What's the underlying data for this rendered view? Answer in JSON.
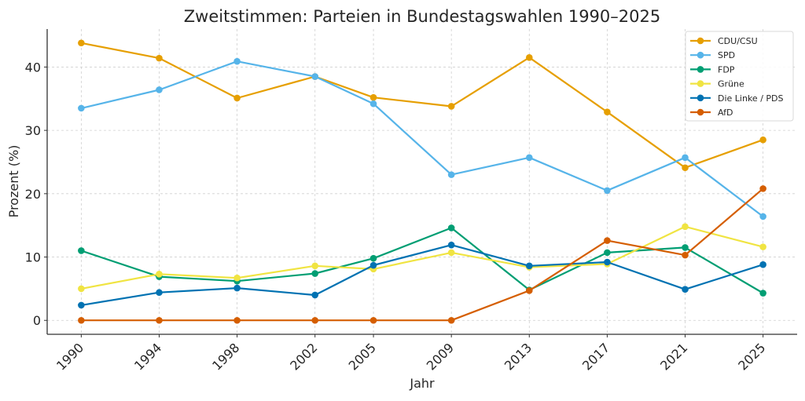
{
  "chart_data": {
    "type": "line",
    "title": "Zweitstimmen: Parteien in Bundestagswahlen 1990–2025",
    "xlabel": "Jahr",
    "ylabel": "Prozent (%)",
    "x": [
      1990,
      1994,
      1998,
      2002,
      2005,
      2009,
      2013,
      2017,
      2021,
      2025
    ],
    "x_tick_labels": [
      "1990",
      "1994",
      "1998",
      "2002",
      "2005",
      "2009",
      "2013",
      "2017",
      "2021",
      "2025"
    ],
    "y_ticks": [
      0,
      10,
      20,
      30,
      40
    ],
    "ylim": [
      -2.2,
      46.0
    ],
    "xlim": [
      1988.25,
      2026.75
    ],
    "grid": true,
    "legend_position": "top-right",
    "series": [
      {
        "name": "CDU/CSU",
        "color": "#E69F00",
        "values": [
          43.8,
          41.4,
          35.1,
          38.5,
          35.2,
          33.8,
          41.5,
          32.9,
          24.1,
          28.5
        ]
      },
      {
        "name": "SPD",
        "color": "#56B4E9",
        "values": [
          33.5,
          36.4,
          40.9,
          38.5,
          34.2,
          23.0,
          25.7,
          20.5,
          25.7,
          16.4
        ]
      },
      {
        "name": "FDP",
        "color": "#009E73",
        "values": [
          11.0,
          6.9,
          6.2,
          7.4,
          9.8,
          14.6,
          4.8,
          10.7,
          11.5,
          4.3
        ]
      },
      {
        "name": "Grüne",
        "color": "#F0E442",
        "values": [
          5.0,
          7.3,
          6.7,
          8.6,
          8.1,
          10.7,
          8.4,
          8.9,
          14.8,
          11.6
        ]
      },
      {
        "name": "Die Linke / PDS",
        "color": "#0072B2",
        "values": [
          2.4,
          4.4,
          5.1,
          4.0,
          8.7,
          11.9,
          8.6,
          9.2,
          4.9,
          8.8
        ]
      },
      {
        "name": "AfD",
        "color": "#D55E00",
        "values": [
          0,
          0,
          0,
          0,
          0,
          0,
          4.7,
          12.6,
          10.3,
          20.8
        ]
      }
    ]
  }
}
